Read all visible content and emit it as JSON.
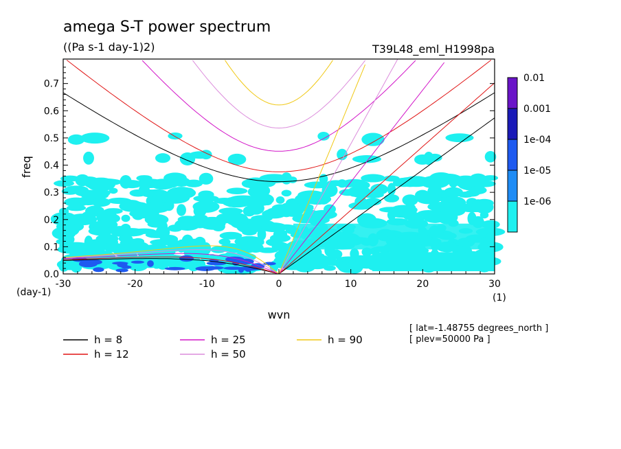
{
  "chart_data": {
    "type": "contour",
    "title": "amega S-T power spectrum",
    "units": "((Pa s-1 day-1)2)",
    "run_label": "T39L48_eml_H1998pa",
    "xlabel": "wvn",
    "ylabel": "freq",
    "x_unit": "(1)",
    "y_unit": "(day-1)",
    "xlim": [
      -30,
      30
    ],
    "ylim": [
      0,
      0.79
    ],
    "xticks": [
      -30,
      -20,
      -10,
      0,
      10,
      20,
      30
    ],
    "xtick_labels": [
      "-30",
      "-20",
      "-10",
      "0",
      "10",
      "20",
      "30"
    ],
    "yticks": [
      0,
      0.1,
      0.2,
      0.3,
      0.4,
      0.5,
      0.6,
      0.7
    ],
    "ytick_labels": [
      "0.0",
      "0.1",
      "0.2",
      "0.3",
      "0.4",
      "0.5",
      "0.6",
      "0.7"
    ],
    "colorbar": {
      "levels": [
        "0.01",
        "0.001",
        "1e-04",
        "1e-05",
        "1e-06"
      ],
      "colors": [
        "#6a14c8",
        "#1a1ab8",
        "#1e5af0",
        "#1e8cf5",
        "#1ef0f0"
      ]
    },
    "dispersion_curves": [
      {
        "label": "h =  8",
        "h": 8,
        "color": "#000000"
      },
      {
        "label": "h = 12",
        "h": 12,
        "color": "#e01414"
      },
      {
        "label": "h = 25",
        "h": 25,
        "color": "#d214c8"
      },
      {
        "label": "h = 50",
        "h": 50,
        "color": "#dc8cdc"
      },
      {
        "label": "h = 90",
        "h": 90,
        "color": "#f0c814"
      }
    ],
    "annotations": [
      "[ lat=-1.48755 degrees_north ]",
      "[ plev=50000 Pa ]"
    ]
  }
}
